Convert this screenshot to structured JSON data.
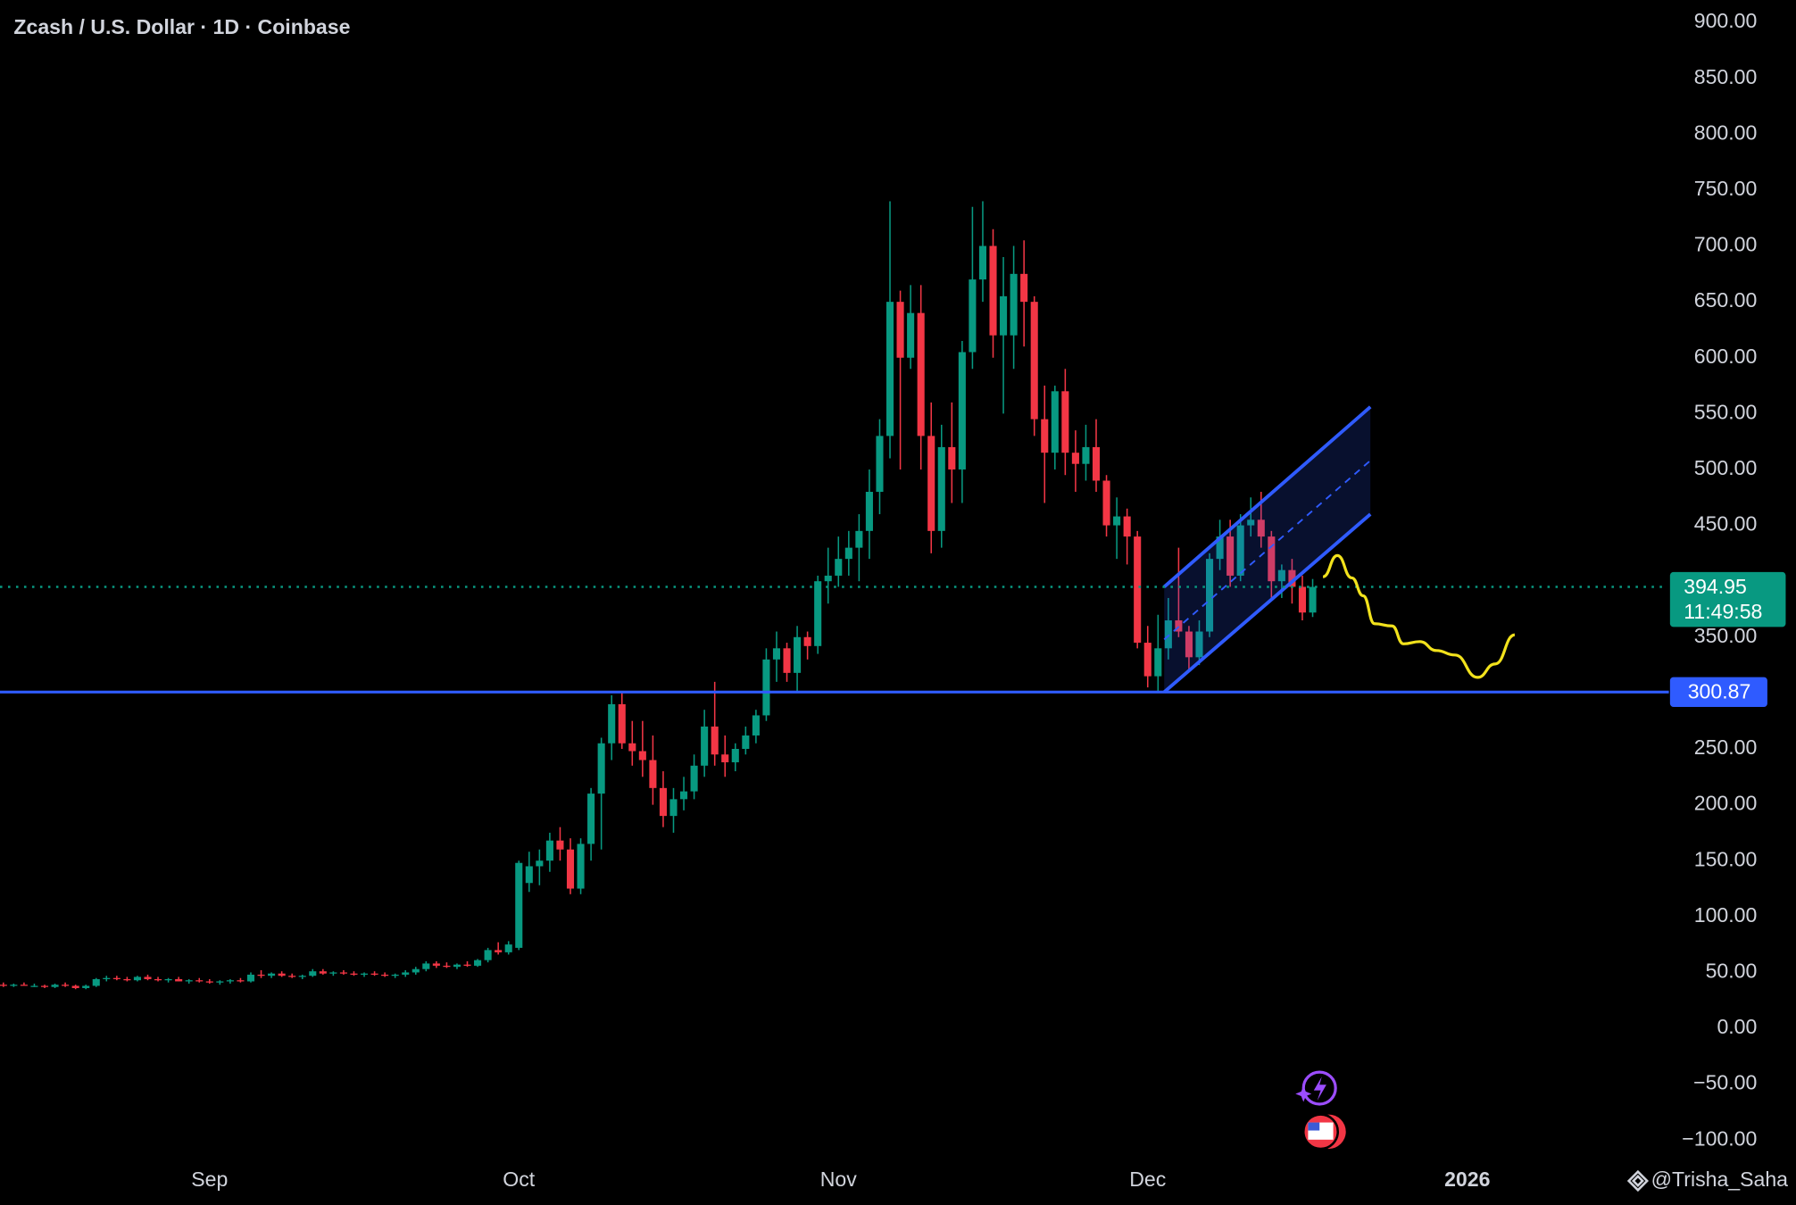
{
  "chart_data": {
    "type": "candlestick",
    "title": "Zcash / U.S. Dollar · 1D · Coinbase",
    "up_color": "#089981",
    "down_color": "#f23645",
    "ohlc": [
      [
        39,
        41,
        37,
        38
      ],
      [
        38,
        40,
        37,
        39
      ],
      [
        39,
        41,
        38,
        38
      ],
      [
        38,
        40,
        37,
        38
      ],
      [
        38,
        39,
        36,
        37
      ],
      [
        37,
        40,
        36,
        39
      ],
      [
        39,
        41,
        37,
        38
      ],
      [
        38,
        39,
        35,
        36
      ],
      [
        36,
        39,
        35,
        38
      ],
      [
        38,
        45,
        37,
        44
      ],
      [
        44,
        47,
        42,
        45
      ],
      [
        45,
        47,
        43,
        44
      ],
      [
        44,
        46,
        42,
        43
      ],
      [
        43,
        47,
        42,
        46
      ],
      [
        46,
        48,
        43,
        44
      ],
      [
        44,
        46,
        42,
        43
      ],
      [
        43,
        45,
        41,
        44
      ],
      [
        44,
        46,
        42,
        42
      ],
      [
        42,
        44,
        40,
        43
      ],
      [
        43,
        45,
        41,
        42
      ],
      [
        42,
        44,
        40,
        41
      ],
      [
        41,
        43,
        39,
        42
      ],
      [
        42,
        44,
        40,
        43
      ],
      [
        43,
        45,
        41,
        42
      ],
      [
        42,
        50,
        41,
        48
      ],
      [
        48,
        52,
        45,
        47
      ],
      [
        47,
        50,
        45,
        49
      ],
      [
        49,
        51,
        46,
        47
      ],
      [
        47,
        49,
        45,
        46
      ],
      [
        46,
        48,
        44,
        47
      ],
      [
        47,
        53,
        46,
        51
      ],
      [
        51,
        53,
        48,
        49
      ],
      [
        49,
        51,
        47,
        50
      ],
      [
        50,
        52,
        48,
        49
      ],
      [
        49,
        51,
        47,
        48
      ],
      [
        48,
        50,
        46,
        49
      ],
      [
        49,
        51,
        47,
        48
      ],
      [
        48,
        50,
        46,
        47
      ],
      [
        47,
        49,
        45,
        48
      ],
      [
        48,
        52,
        46,
        50
      ],
      [
        50,
        55,
        48,
        53
      ],
      [
        53,
        60,
        51,
        58
      ],
      [
        58,
        60,
        54,
        56
      ],
      [
        56,
        59,
        54,
        55
      ],
      [
        55,
        58,
        53,
        57
      ],
      [
        57,
        60,
        55,
        56
      ],
      [
        56,
        62,
        55,
        61
      ],
      [
        61,
        72,
        59,
        70
      ],
      [
        70,
        77,
        66,
        68
      ],
      [
        68,
        78,
        66,
        75
      ],
      [
        72,
        150,
        70,
        148
      ],
      [
        130,
        158,
        122,
        145
      ],
      [
        145,
        160,
        128,
        150
      ],
      [
        150,
        175,
        140,
        168
      ],
      [
        168,
        180,
        150,
        160
      ],
      [
        160,
        170,
        120,
        125
      ],
      [
        125,
        170,
        120,
        165
      ],
      [
        165,
        215,
        150,
        210
      ],
      [
        210,
        260,
        160,
        255
      ],
      [
        255,
        298,
        240,
        290
      ],
      [
        290,
        300,
        250,
        255
      ],
      [
        255,
        275,
        235,
        248
      ],
      [
        248,
        275,
        225,
        240
      ],
      [
        240,
        262,
        200,
        215
      ],
      [
        215,
        230,
        180,
        190
      ],
      [
        190,
        215,
        175,
        205
      ],
      [
        205,
        225,
        195,
        212
      ],
      [
        212,
        245,
        205,
        235
      ],
      [
        235,
        285,
        225,
        270
      ],
      [
        270,
        310,
        235,
        245
      ],
      [
        245,
        262,
        225,
        238
      ],
      [
        238,
        255,
        230,
        250
      ],
      [
        250,
        270,
        245,
        262
      ],
      [
        262,
        285,
        255,
        280
      ],
      [
        280,
        340,
        275,
        330
      ],
      [
        330,
        355,
        310,
        340
      ],
      [
        340,
        345,
        310,
        318
      ],
      [
        318,
        360,
        300,
        350
      ],
      [
        350,
        355,
        330,
        342
      ],
      [
        342,
        405,
        335,
        400
      ],
      [
        400,
        430,
        380,
        405
      ],
      [
        405,
        440,
        395,
        420
      ],
      [
        420,
        445,
        405,
        430
      ],
      [
        430,
        460,
        400,
        445
      ],
      [
        445,
        500,
        420,
        480
      ],
      [
        480,
        545,
        460,
        530
      ],
      [
        530,
        740,
        510,
        650
      ],
      [
        650,
        660,
        500,
        600
      ],
      [
        600,
        665,
        590,
        640
      ],
      [
        640,
        665,
        500,
        530
      ],
      [
        530,
        560,
        425,
        445
      ],
      [
        445,
        540,
        430,
        520
      ],
      [
        520,
        560,
        470,
        500
      ],
      [
        500,
        615,
        470,
        605
      ],
      [
        605,
        735,
        590,
        670
      ],
      [
        670,
        740,
        650,
        700
      ],
      [
        700,
        715,
        600,
        620
      ],
      [
        620,
        690,
        550,
        655
      ],
      [
        620,
        700,
        590,
        675
      ],
      [
        675,
        705,
        610,
        650
      ],
      [
        650,
        655,
        530,
        545
      ],
      [
        545,
        575,
        470,
        515
      ],
      [
        515,
        575,
        500,
        570
      ],
      [
        570,
        590,
        495,
        515
      ],
      [
        515,
        535,
        480,
        505
      ],
      [
        505,
        540,
        490,
        520
      ],
      [
        520,
        545,
        480,
        490
      ],
      [
        490,
        495,
        440,
        450
      ],
      [
        450,
        475,
        420,
        458
      ],
      [
        458,
        465,
        415,
        440
      ],
      [
        440,
        445,
        340,
        345
      ],
      [
        345,
        360,
        305,
        315
      ],
      [
        315,
        370,
        301,
        340
      ],
      [
        340,
        385,
        330,
        365
      ],
      [
        365,
        430,
        350,
        355
      ],
      [
        355,
        360,
        320,
        332
      ],
      [
        332,
        365,
        325,
        355
      ],
      [
        355,
        425,
        350,
        420
      ],
      [
        420,
        455,
        410,
        440
      ],
      [
        440,
        455,
        395,
        405
      ],
      [
        405,
        460,
        400,
        450
      ],
      [
        450,
        475,
        440,
        455
      ],
      [
        455,
        480,
        430,
        440
      ],
      [
        440,
        445,
        385,
        400
      ],
      [
        400,
        415,
        385,
        410
      ],
      [
        410,
        420,
        380,
        395
      ],
      [
        395,
        405,
        365,
        372
      ],
      [
        372,
        402,
        368,
        394.95
      ]
    ],
    "xlim": [
      -0.33,
      161.33
    ],
    "xticks": [
      {
        "value": 20,
        "label": "Sep"
      },
      {
        "value": 50,
        "label": "Oct"
      },
      {
        "value": 81,
        "label": "Nov"
      },
      {
        "value": 111,
        "label": "Dec"
      },
      {
        "value": 142,
        "label": "2026"
      }
    ],
    "ylim": [
      -115,
      920
    ],
    "yticks": [
      {
        "value": 900,
        "label": "900.00"
      },
      {
        "value": 850,
        "label": "850.00"
      },
      {
        "value": 800,
        "label": "800.00"
      },
      {
        "value": 750,
        "label": "750.00"
      },
      {
        "value": 700,
        "label": "700.00"
      },
      {
        "value": 650,
        "label": "650.00"
      },
      {
        "value": 600,
        "label": "600.00"
      },
      {
        "value": 550,
        "label": "550.00"
      },
      {
        "value": 500,
        "label": "500.00"
      },
      {
        "value": 450,
        "label": "450.00"
      },
      {
        "value": 400,
        "label": "400.00"
      },
      {
        "value": 350,
        "label": "350.00"
      },
      {
        "value": 300,
        "label": "300.00"
      },
      {
        "value": 250,
        "label": "250.00"
      },
      {
        "value": 200,
        "label": "200.00"
      },
      {
        "value": 150,
        "label": "150.00"
      },
      {
        "value": 100,
        "label": "100.00"
      },
      {
        "value": 50,
        "label": "50.00"
      },
      {
        "value": 0,
        "label": "0.00"
      },
      {
        "value": -50,
        "label": "−50.00"
      },
      {
        "value": -100,
        "label": "−100.00"
      }
    ],
    "hline": {
      "value": 300.87,
      "color": "#2f5bff"
    },
    "last_price": {
      "value": 394.95,
      "countdown": "11:49:58",
      "color": "#089981"
    },
    "channel": {
      "color": "#2f5bff",
      "lower": [
        [
          112.6,
          300.87
        ],
        [
          132.6,
          460
        ]
      ],
      "upper": [
        [
          112.6,
          395
        ],
        [
          132.6,
          556
        ]
      ]
    },
    "projection": {
      "color": "#f2e21c",
      "x": [
        128,
        129.4,
        130.8,
        131.9,
        133,
        134.7,
        135.8,
        137.4,
        139,
        140.8,
        143,
        144.7,
        146.6
      ],
      "values": [
        404,
        423,
        403,
        387,
        362,
        360,
        344,
        346,
        338,
        334,
        314,
        326,
        352
      ]
    },
    "watermark": "@Trisha_Saha"
  }
}
